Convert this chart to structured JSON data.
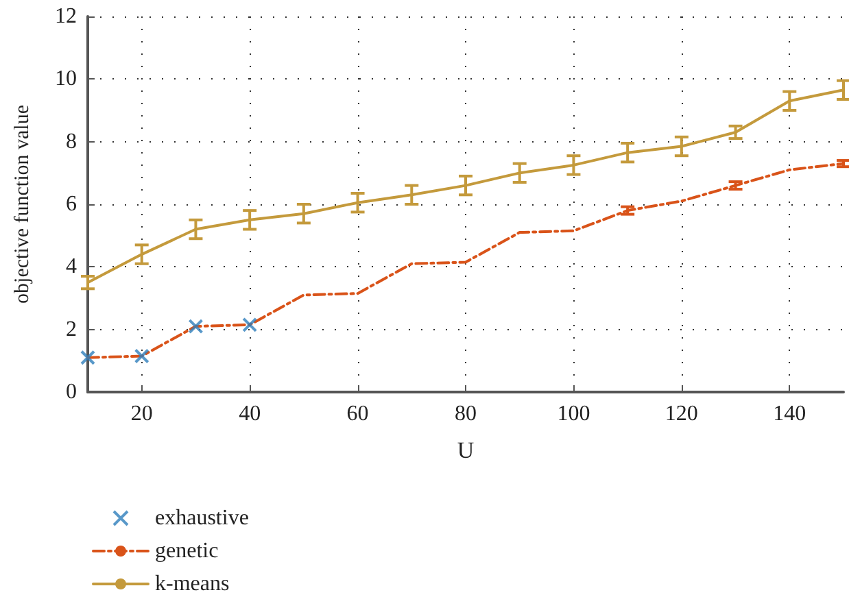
{
  "chart_data": {
    "type": "line",
    "xlabel": "U",
    "ylabel": "objective function value",
    "x": [
      10,
      20,
      30,
      40,
      50,
      60,
      70,
      80,
      90,
      100,
      110,
      120,
      130,
      140,
      150
    ],
    "series": [
      {
        "name": "exhaustive",
        "type": "scatter",
        "marker": "cross",
        "color": "#2e7ebc",
        "x": [
          10,
          20,
          30,
          40
        ],
        "values": [
          1.1,
          1.15,
          2.1,
          2.15
        ]
      },
      {
        "name": "genetic",
        "color": "#d95319",
        "line_style": "dashed",
        "marker": "none",
        "values": [
          1.1,
          1.15,
          2.1,
          2.15,
          3.1,
          3.15,
          4.1,
          4.15,
          5.1,
          5.15,
          5.8,
          6.1,
          6.6,
          7.1,
          7.3
        ],
        "errors": [
          null,
          null,
          null,
          null,
          null,
          null,
          null,
          null,
          null,
          null,
          0.12,
          null,
          0.12,
          null,
          0.1
        ]
      },
      {
        "name": "k-means",
        "color": "#c49a3c",
        "line_style": "solid",
        "marker": "none",
        "values": [
          3.5,
          4.4,
          5.2,
          5.5,
          5.7,
          6.05,
          6.3,
          6.6,
          7.0,
          7.25,
          7.65,
          7.85,
          8.3,
          9.3,
          9.65
        ],
        "errors": [
          0.2,
          0.3,
          0.3,
          0.3,
          0.3,
          0.3,
          0.3,
          0.3,
          0.3,
          0.3,
          0.3,
          0.3,
          0.2,
          0.3,
          0.3
        ]
      }
    ],
    "xlim": [
      10,
      150
    ],
    "xticks": [
      20,
      40,
      60,
      80,
      100,
      120,
      140
    ],
    "ylim": [
      0,
      12
    ],
    "yticks": [
      0,
      2,
      4,
      6,
      8,
      10,
      12
    ],
    "grid": true,
    "legend": "bottom left"
  }
}
